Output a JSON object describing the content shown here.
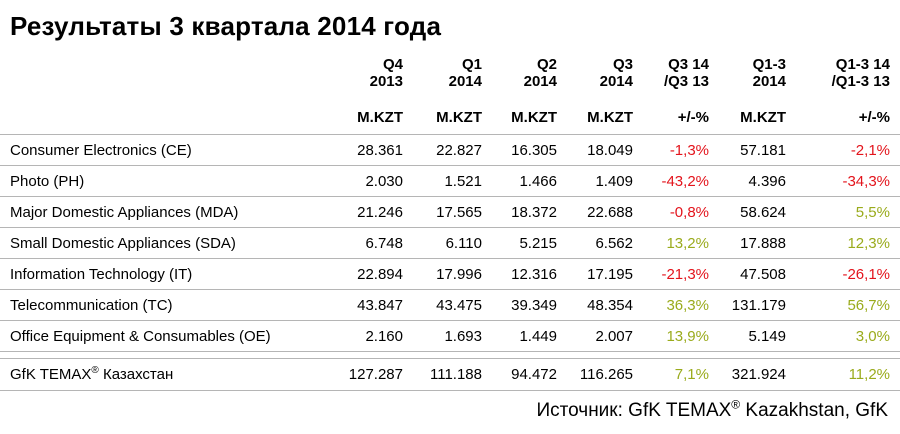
{
  "title": "Результаты 3 квартала 2014 года",
  "columns": [
    {
      "line1": "Q4",
      "line2": "2013",
      "unit": "M.KZT"
    },
    {
      "line1": "Q1",
      "line2": "2014",
      "unit": "M.KZT"
    },
    {
      "line1": "Q2",
      "line2": "2014",
      "unit": "M.KZT"
    },
    {
      "line1": "Q3",
      "line2": "2014",
      "unit": "M.KZT"
    },
    {
      "line1": "Q3 14",
      "line2": "/Q3 13",
      "unit": "+/-%"
    },
    {
      "line1": "Q1-3",
      "line2": "2014",
      "unit": "M.KZT"
    },
    {
      "line1": "Q1-3 14",
      "line2": "/Q1-3 13",
      "unit": "+/-%"
    }
  ],
  "rows": [
    {
      "label": "Consumer Electronics (CE)",
      "q4_2013": "28.361",
      "q1_2014": "22.827",
      "q2_2014": "16.305",
      "q3_2014": "18.049",
      "q3_change": "-1,3%",
      "q1_3_2014": "57.181",
      "q1_3_change": "-2,1%"
    },
    {
      "label": "Photo (PH)",
      "q4_2013": "2.030",
      "q1_2014": "1.521",
      "q2_2014": "1.466",
      "q3_2014": "1.409",
      "q3_change": "-43,2%",
      "q1_3_2014": "4.396",
      "q1_3_change": "-34,3%"
    },
    {
      "label": "Major Domestic Appliances (MDA)",
      "q4_2013": "21.246",
      "q1_2014": "17.565",
      "q2_2014": "18.372",
      "q3_2014": "22.688",
      "q3_change": "-0,8%",
      "q1_3_2014": "58.624",
      "q1_3_change": "5,5%"
    },
    {
      "label": "Small Domestic Appliances (SDA)",
      "q4_2013": "6.748",
      "q1_2014": "6.110",
      "q2_2014": "5.215",
      "q3_2014": "6.562",
      "q3_change": "13,2%",
      "q1_3_2014": "17.888",
      "q1_3_change": "12,3%"
    },
    {
      "label": "Information Technology (IT)",
      "q4_2013": "22.894",
      "q1_2014": "17.996",
      "q2_2014": "12.316",
      "q3_2014": "17.195",
      "q3_change": "-21,3%",
      "q1_3_2014": "47.508",
      "q1_3_change": "-26,1%"
    },
    {
      "label": "Telecommunication (TC)",
      "q4_2013": "43.847",
      "q1_2014": "43.475",
      "q2_2014": "39.349",
      "q3_2014": "48.354",
      "q3_change": "36,3%",
      "q1_3_2014": "131.179",
      "q1_3_change": "56,7%"
    },
    {
      "label": "Office Equipment & Consumables (OE)",
      "q4_2013": "2.160",
      "q1_2014": "1.693",
      "q2_2014": "1.449",
      "q3_2014": "2.007",
      "q3_change": "13,9%",
      "q1_3_2014": "5.149",
      "q1_3_change": "3,0%"
    }
  ],
  "total": {
    "label_prefix": "GfK TEMAX",
    "label_sup": "®",
    "label_suffix": " Казахстан",
    "q4_2013": "127.287",
    "q1_2014": "111.188",
    "q2_2014": "94.472",
    "q3_2014": "116.265",
    "q3_change": "7,1%",
    "q1_3_2014": "321.924",
    "q1_3_change": "11,2%"
  },
  "source": {
    "prefix": "Источник: GfK TEMAX",
    "sup": "®",
    "suffix": " Kazakhstan, GfK"
  },
  "colors": {
    "negative": "#e3141c",
    "positive": "#9aab1c",
    "rule": "#b5b5b5"
  }
}
